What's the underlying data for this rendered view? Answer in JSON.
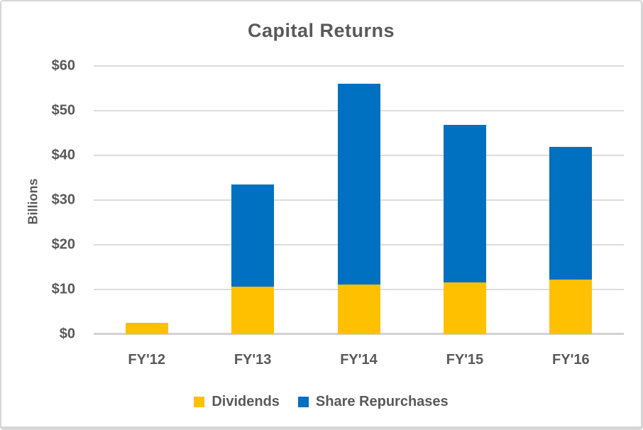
{
  "chart_data": {
    "type": "bar",
    "stacked": true,
    "title": "Capital Returns",
    "ylabel": "Billions",
    "xlabel": "",
    "categories": [
      "FY'12",
      "FY'13",
      "FY'14",
      "FY'15",
      "FY'16"
    ],
    "series": [
      {
        "name": "Dividends",
        "color": "#FFC000",
        "values": [
          2.5,
          10.6,
          11.1,
          11.6,
          12.2
        ]
      },
      {
        "name": "Share Repurchases",
        "color": "#0070C0",
        "values": [
          0,
          22.9,
          45.0,
          35.3,
          29.7
        ]
      }
    ],
    "totals": [
      2.5,
      33.5,
      56.1,
      46.9,
      41.9
    ],
    "ylim": [
      0,
      60
    ],
    "ytick_step": 10,
    "ytick_labels": [
      "$0",
      "$10",
      "$20",
      "$30",
      "$40",
      "$50",
      "$60"
    ],
    "grid": true,
    "gridline_color": "#dcdcdc",
    "axis_line_color": "#d2d2d2",
    "text_color": "#595959",
    "legend_position": "bottom"
  }
}
